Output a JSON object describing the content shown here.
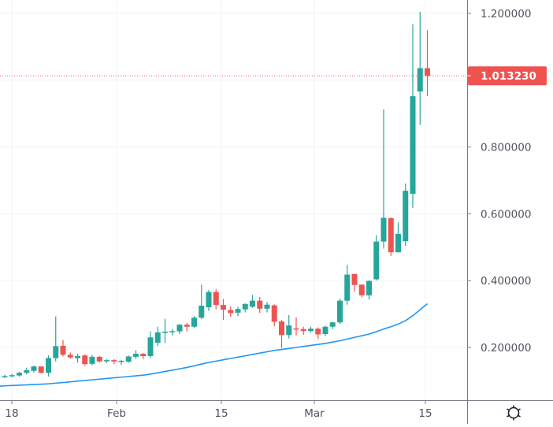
{
  "colors": {
    "up": "#26a69a",
    "down": "#ef5350",
    "ma_line": "#2196f3",
    "grid": "#f0f3fa",
    "axis_line": "#787b86",
    "axis_text": "#50535e",
    "last_price_bg": "#ef5350",
    "last_price_line": "#ef5350"
  },
  "price_axis": {
    "labels": [
      "1.200000",
      "0.800000",
      "0.600000",
      "0.400000",
      "0.200000"
    ],
    "last_price_label": "1.013230"
  },
  "time_axis": {
    "labels": [
      "18",
      "Feb",
      "15",
      "Mar",
      "15"
    ]
  },
  "settings_button": {
    "icon": "gear-icon"
  },
  "chart_data": {
    "type": "candlestick",
    "title": "",
    "xlabel": "",
    "ylabel": "",
    "ylim": [
      0.06,
      1.24
    ],
    "grid": true,
    "y_ticks": [
      0.2,
      0.4,
      0.6,
      0.8,
      1.0,
      1.2
    ],
    "x_tick_labels": [
      "18",
      "Feb",
      "15",
      "Mar",
      "15"
    ],
    "last_price": 1.01323,
    "candles": [
      {
        "o": 0.112,
        "h": 0.118,
        "l": 0.108,
        "c": 0.114
      },
      {
        "o": 0.114,
        "h": 0.121,
        "l": 0.11,
        "c": 0.117
      },
      {
        "o": 0.116,
        "h": 0.127,
        "l": 0.112,
        "c": 0.124
      },
      {
        "o": 0.124,
        "h": 0.139,
        "l": 0.119,
        "c": 0.132
      },
      {
        "o": 0.13,
        "h": 0.146,
        "l": 0.125,
        "c": 0.143
      },
      {
        "o": 0.143,
        "h": 0.141,
        "l": 0.122,
        "c": 0.124
      },
      {
        "o": 0.124,
        "h": 0.176,
        "l": 0.113,
        "c": 0.168
      },
      {
        "o": 0.168,
        "h": 0.293,
        "l": 0.158,
        "c": 0.204
      },
      {
        "o": 0.205,
        "h": 0.222,
        "l": 0.173,
        "c": 0.178
      },
      {
        "o": 0.178,
        "h": 0.185,
        "l": 0.166,
        "c": 0.17
      },
      {
        "o": 0.168,
        "h": 0.181,
        "l": 0.154,
        "c": 0.174
      },
      {
        "o": 0.176,
        "h": 0.179,
        "l": 0.146,
        "c": 0.15
      },
      {
        "o": 0.151,
        "h": 0.178,
        "l": 0.147,
        "c": 0.172
      },
      {
        "o": 0.172,
        "h": 0.175,
        "l": 0.155,
        "c": 0.158
      },
      {
        "o": 0.159,
        "h": 0.165,
        "l": 0.153,
        "c": 0.162
      },
      {
        "o": 0.162,
        "h": 0.165,
        "l": 0.15,
        "c": 0.158
      },
      {
        "o": 0.158,
        "h": 0.162,
        "l": 0.148,
        "c": 0.16
      },
      {
        "o": 0.157,
        "h": 0.176,
        "l": 0.154,
        "c": 0.173
      },
      {
        "o": 0.172,
        "h": 0.192,
        "l": 0.166,
        "c": 0.181
      },
      {
        "o": 0.181,
        "h": 0.183,
        "l": 0.165,
        "c": 0.174
      },
      {
        "o": 0.174,
        "h": 0.248,
        "l": 0.168,
        "c": 0.23
      },
      {
        "o": 0.214,
        "h": 0.262,
        "l": 0.204,
        "c": 0.245
      },
      {
        "o": 0.245,
        "h": 0.286,
        "l": 0.213,
        "c": 0.247
      },
      {
        "o": 0.247,
        "h": 0.255,
        "l": 0.236,
        "c": 0.249
      },
      {
        "o": 0.248,
        "h": 0.271,
        "l": 0.24,
        "c": 0.268
      },
      {
        "o": 0.268,
        "h": 0.273,
        "l": 0.248,
        "c": 0.262
      },
      {
        "o": 0.262,
        "h": 0.294,
        "l": 0.258,
        "c": 0.289
      },
      {
        "o": 0.289,
        "h": 0.388,
        "l": 0.285,
        "c": 0.325
      },
      {
        "o": 0.32,
        "h": 0.372,
        "l": 0.309,
        "c": 0.366
      },
      {
        "o": 0.366,
        "h": 0.374,
        "l": 0.314,
        "c": 0.327
      },
      {
        "o": 0.327,
        "h": 0.345,
        "l": 0.282,
        "c": 0.313
      },
      {
        "o": 0.312,
        "h": 0.323,
        "l": 0.292,
        "c": 0.303
      },
      {
        "o": 0.304,
        "h": 0.322,
        "l": 0.293,
        "c": 0.315
      },
      {
        "o": 0.314,
        "h": 0.332,
        "l": 0.305,
        "c": 0.33
      },
      {
        "o": 0.322,
        "h": 0.357,
        "l": 0.318,
        "c": 0.34
      },
      {
        "o": 0.34,
        "h": 0.351,
        "l": 0.303,
        "c": 0.316
      },
      {
        "o": 0.316,
        "h": 0.336,
        "l": 0.305,
        "c": 0.328
      },
      {
        "o": 0.326,
        "h": 0.329,
        "l": 0.263,
        "c": 0.277
      },
      {
        "o": 0.278,
        "h": 0.282,
        "l": 0.198,
        "c": 0.237
      },
      {
        "o": 0.237,
        "h": 0.297,
        "l": 0.227,
        "c": 0.266
      },
      {
        "o": 0.257,
        "h": 0.29,
        "l": 0.236,
        "c": 0.255
      },
      {
        "o": 0.255,
        "h": 0.262,
        "l": 0.238,
        "c": 0.249
      },
      {
        "o": 0.249,
        "h": 0.262,
        "l": 0.244,
        "c": 0.256
      },
      {
        "o": 0.256,
        "h": 0.26,
        "l": 0.225,
        "c": 0.239
      },
      {
        "o": 0.24,
        "h": 0.265,
        "l": 0.234,
        "c": 0.262
      },
      {
        "o": 0.262,
        "h": 0.277,
        "l": 0.255,
        "c": 0.275
      },
      {
        "o": 0.275,
        "h": 0.346,
        "l": 0.27,
        "c": 0.34
      },
      {
        "o": 0.34,
        "h": 0.447,
        "l": 0.328,
        "c": 0.418
      },
      {
        "o": 0.42,
        "h": 0.419,
        "l": 0.367,
        "c": 0.387
      },
      {
        "o": 0.388,
        "h": 0.387,
        "l": 0.35,
        "c": 0.356
      },
      {
        "o": 0.356,
        "h": 0.401,
        "l": 0.343,
        "c": 0.399
      },
      {
        "o": 0.404,
        "h": 0.536,
        "l": 0.4,
        "c": 0.517
      },
      {
        "o": 0.517,
        "h": 0.913,
        "l": 0.496,
        "c": 0.588
      },
      {
        "o": 0.587,
        "h": 0.589,
        "l": 0.474,
        "c": 0.485
      },
      {
        "o": 0.485,
        "h": 0.574,
        "l": 0.484,
        "c": 0.54
      },
      {
        "o": 0.518,
        "h": 0.691,
        "l": 0.504,
        "c": 0.669
      },
      {
        "o": 0.66,
        "h": 1.168,
        "l": 0.618,
        "c": 0.952
      },
      {
        "o": 0.966,
        "h": 1.205,
        "l": 0.867,
        "c": 1.036
      },
      {
        "o": 1.036,
        "h": 1.15,
        "l": 0.952,
        "c": 1.013
      }
    ],
    "series": [
      {
        "name": "Moving average",
        "type": "line",
        "values": [
          0.085,
          0.086,
          0.087,
          0.088,
          0.089,
          0.09,
          0.091,
          0.093,
          0.095,
          0.097,
          0.099,
          0.101,
          0.103,
          0.105,
          0.107,
          0.109,
          0.111,
          0.113,
          0.115,
          0.117,
          0.12,
          0.124,
          0.128,
          0.132,
          0.136,
          0.14,
          0.145,
          0.15,
          0.155,
          0.159,
          0.163,
          0.167,
          0.171,
          0.175,
          0.179,
          0.183,
          0.187,
          0.191,
          0.194,
          0.197,
          0.2,
          0.203,
          0.206,
          0.209,
          0.212,
          0.216,
          0.22,
          0.225,
          0.23,
          0.235,
          0.24,
          0.247,
          0.255,
          0.262,
          0.27,
          0.28,
          0.295,
          0.313,
          0.331
        ]
      }
    ]
  }
}
